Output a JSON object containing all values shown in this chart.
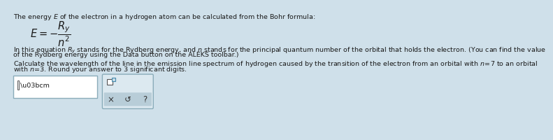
{
  "background_color": "#cfe0ea",
  "text_color": "#1a1a1a",
  "font_size_main": 6.8,
  "font_size_formula": 10.5,
  "title": "The energy $\\mathit{E}$ of the electron in a hydrogen atom can be calculated from the Bohr formula:",
  "formula": "$E = -\\dfrac{R_y}{n^2}$",
  "para1_l1": "In this equation $R_y$ stands for the Rydberg energy, and $n$ stands for the principal quantum number of the orbital that holds the electron. (You can find the value",
  "para1_l2": "of the Rydberg energy using the Data button on the ALEKS toolbar.)",
  "para2_l1": "Calculate the wavelength of the line in the emission line spectrum of hydrogen caused by the transition of the electron from an orbital with $n\\!=\\!7$ to an orbital",
  "para2_l2": "with $n\\!=\\!3$. Round your answer to 3 significant digits.",
  "input_label": "\\u03bcm",
  "box1_facecolor": "#ffffff",
  "box1_edgecolor": "#8aacba",
  "box2_facecolor": "#dce9f0",
  "box2_edgecolor": "#8aacba",
  "button_bar_color": "#b8cdd8",
  "cursor_color": "#555555",
  "checkbox_edge": "#555555",
  "checkbox_inner_edge": "#4488aa",
  "checkbox_inner_face": "#c8dde8"
}
